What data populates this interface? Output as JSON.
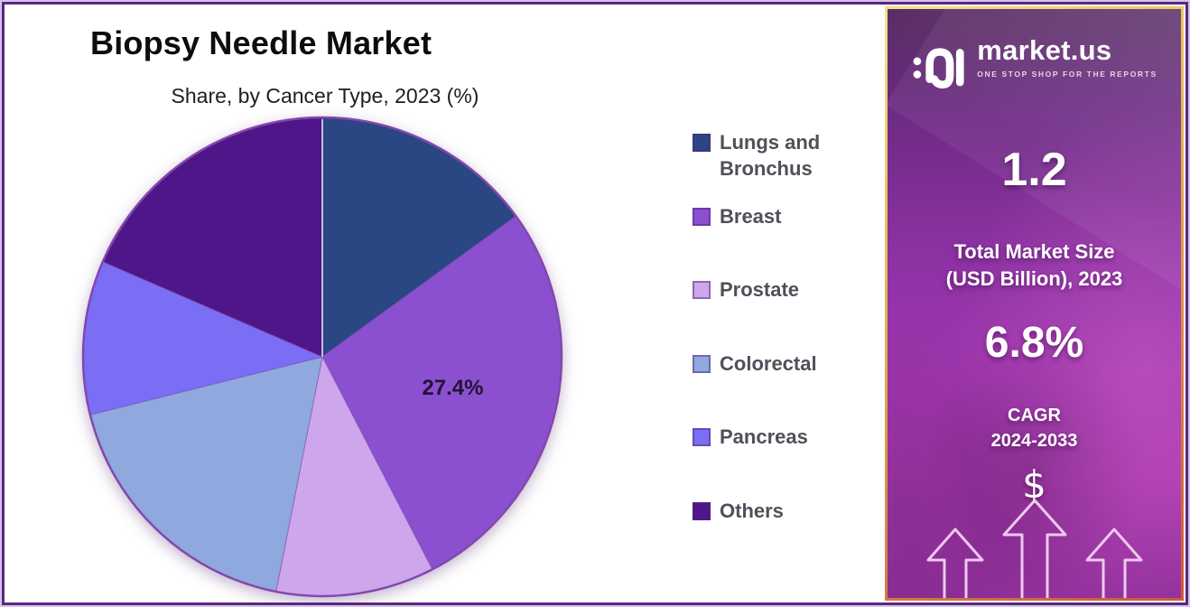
{
  "chart_data": {
    "type": "pie",
    "title": "Biopsy Needle Market",
    "subtitle": "Share, by Cancer Type, 2023 (%)",
    "unit": "%",
    "start_angle_deg": 0,
    "direction": "clockwise",
    "legend_position": "right",
    "slices": [
      {
        "label": "Lungs and Bronchus",
        "value": 15.0,
        "color": "#2a4683"
      },
      {
        "label": "Breast",
        "value": 27.4,
        "color": "#8b50d0",
        "data_label": "27.4%"
      },
      {
        "label": "Prostate",
        "value": 10.7,
        "color": "#cda6ec"
      },
      {
        "label": "Colorectal",
        "value": 18.0,
        "color": "#8fa8dd"
      },
      {
        "label": "Pancreas",
        "value": 10.4,
        "color": "#7a6ef5"
      },
      {
        "label": "Others",
        "value": 18.5,
        "color": "#4f1689"
      }
    ]
  },
  "sidebar": {
    "logo": {
      "brand": "market.us",
      "tagline": "ONE STOP SHOP FOR THE REPORTS"
    },
    "market_size_value": "1.2",
    "market_size_label_line1": "Total Market Size",
    "market_size_label_line2": "(USD Billion), 2023",
    "cagr_value": "6.8%",
    "cagr_label_line1": "CAGR",
    "cagr_label_line2": "2024-2033",
    "currency_symbol": "$"
  },
  "colors": {
    "frame_border": "#5c2680",
    "outer_margin": "#cfc6e8",
    "pie_outline": "#8347ad",
    "data_label_text": "#241236",
    "legend_text": "#50505a",
    "sidebar_gradient_top": "#53265f",
    "sidebar_gradient_mid": "#9a34ab",
    "sidebar_gradient_bottom": "#92309c",
    "sidebar_border_gold": "#e3b44e",
    "sidebar_border_orange": "#cf5a35",
    "arrow_outline": "#eec9ef"
  }
}
